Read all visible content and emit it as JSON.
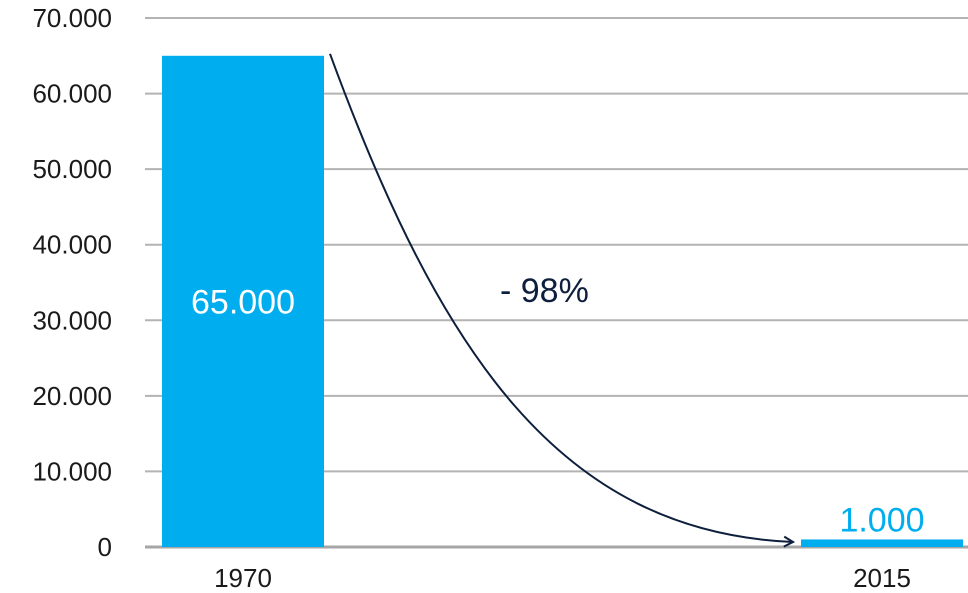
{
  "chart_data": {
    "type": "bar",
    "categories": [
      "1970",
      "2015"
    ],
    "values": [
      65000,
      1000
    ],
    "data_labels": [
      "65.000",
      "1.000"
    ],
    "ylim": [
      0,
      70000
    ],
    "yticks": [
      0,
      10000,
      20000,
      30000,
      40000,
      50000,
      60000,
      70000
    ],
    "ytick_labels": [
      "0",
      "10.000",
      "20.000",
      "30.000",
      "40.000",
      "50.000",
      "60.000",
      "70.000"
    ],
    "grid": true,
    "annotation": {
      "text": "- 98%",
      "arrow": "from 1970 bar to 2015 bar"
    },
    "colors": {
      "bar": "#00aeef",
      "label_inside": "#ffffff",
      "label_above": "#00aeef",
      "arrow": "#0d1f3c",
      "grid": "#b3b3b3",
      "axis": "#a6a6a6"
    }
  }
}
